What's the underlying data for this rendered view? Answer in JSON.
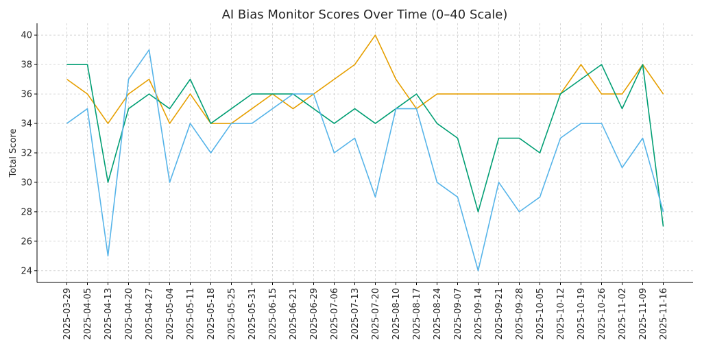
{
  "chart_data": {
    "type": "line",
    "title": "AI Bias Monitor Scores Over Time (0–40 Scale)",
    "xlabel": "",
    "ylabel": "Total Score",
    "ylim": [
      23.2,
      40.8
    ],
    "yticks": [
      24,
      26,
      28,
      30,
      32,
      34,
      36,
      38,
      40
    ],
    "grid": true,
    "categories": [
      "2025-03-29",
      "2025-04-05",
      "2025-04-13",
      "2025-04-20",
      "2025-04-27",
      "2025-05-04",
      "2025-05-11",
      "2025-05-18",
      "2025-05-25",
      "2025-05-31",
      "2025-06-15",
      "2025-06-21",
      "2025-06-29",
      "2025-07-06",
      "2025-07-13",
      "2025-07-20",
      "2025-08-10",
      "2025-08-17",
      "2025-08-24",
      "2025-09-07",
      "2025-09-14",
      "2025-09-21",
      "2025-09-28",
      "2025-10-05",
      "2025-10-12",
      "2025-10-19",
      "2025-10-26",
      "2025-11-02",
      "2025-11-09",
      "2025-11-16"
    ],
    "series": [
      {
        "color": "#E69F00",
        "values": [
          37,
          36,
          34,
          36,
          37,
          34,
          36,
          34,
          34,
          35,
          36,
          35,
          36,
          37,
          38,
          40,
          37,
          35,
          36,
          36,
          36,
          36,
          36,
          36,
          36,
          38,
          36,
          36,
          38,
          36
        ]
      },
      {
        "color": "#009E73",
        "values": [
          38,
          38,
          30,
          35,
          36,
          35,
          37,
          34,
          35,
          36,
          36,
          36,
          35,
          34,
          35,
          34,
          35,
          36,
          34,
          33,
          28,
          33,
          33,
          32,
          36,
          37,
          38,
          35,
          38,
          27
        ]
      },
      {
        "color": "#56B4E9",
        "values": [
          34,
          35,
          25,
          37,
          39,
          30,
          34,
          32,
          34,
          34,
          35,
          36,
          36,
          32,
          33,
          29,
          35,
          35,
          30,
          29,
          24,
          30,
          28,
          29,
          33,
          34,
          34,
          31,
          33,
          28
        ]
      }
    ]
  }
}
